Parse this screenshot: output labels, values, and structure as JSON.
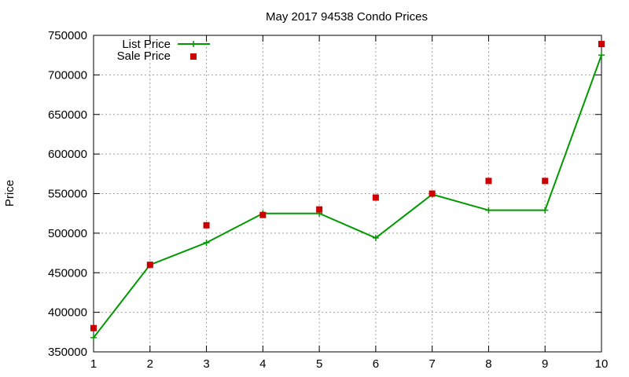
{
  "chart_data": {
    "type": "line",
    "title": "May 2017 94538 Condo Prices",
    "xlabel": "",
    "ylabel": "Price",
    "xlim": [
      1,
      10
    ],
    "ylim": [
      350000,
      750000
    ],
    "x_ticks": [
      "1",
      "2",
      "3",
      "4",
      "5",
      "6",
      "7",
      "8",
      "9",
      "10"
    ],
    "y_ticks": [
      "350000",
      "400000",
      "450000",
      "500000",
      "550000",
      "600000",
      "650000",
      "700000",
      "750000"
    ],
    "grid": true,
    "legend_position": "top-left",
    "x": [
      1,
      2,
      3,
      4,
      5,
      6,
      7,
      8,
      9,
      10
    ],
    "series": [
      {
        "name": "List Price",
        "style": "line-with-plus-markers",
        "color": "#009900",
        "values": [
          368000,
          460000,
          488000,
          525000,
          525000,
          494000,
          549000,
          529000,
          529000,
          725000
        ]
      },
      {
        "name": "Sale Price",
        "style": "square-markers",
        "color": "#cc0000",
        "values": [
          380000,
          460000,
          510000,
          523000,
          530000,
          545000,
          550000,
          566000,
          566000,
          739000
        ]
      }
    ]
  }
}
